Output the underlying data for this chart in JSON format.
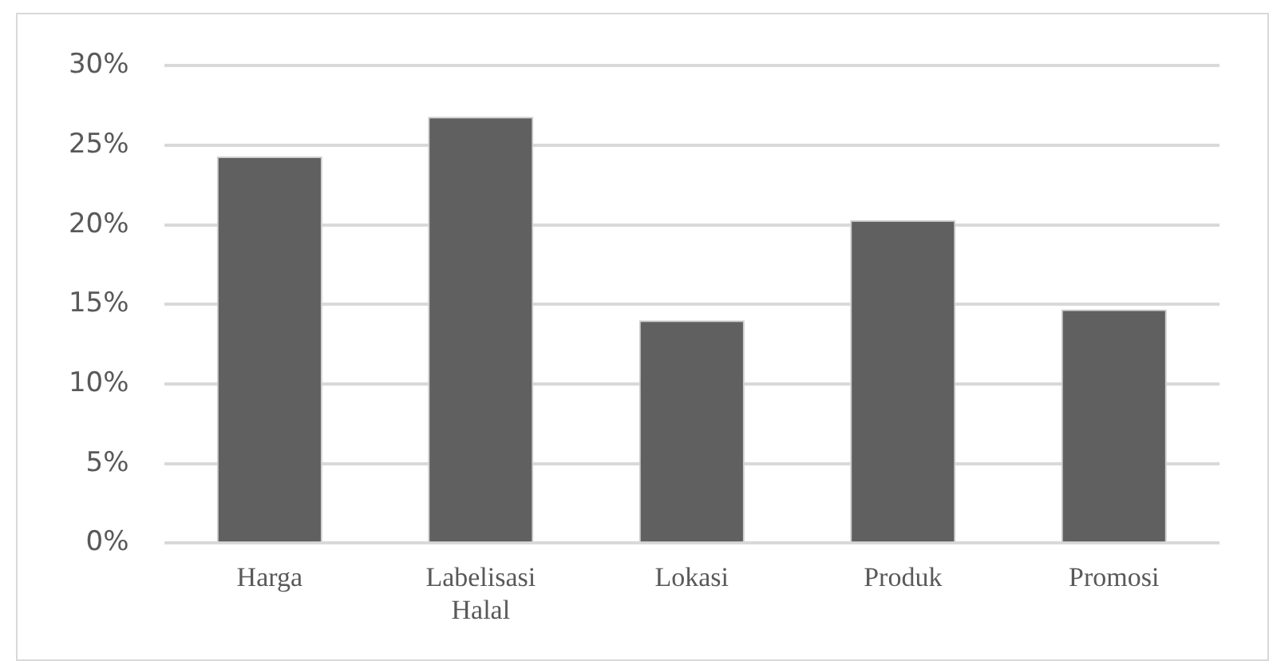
{
  "chart_data": {
    "type": "bar",
    "categories": [
      "Harga",
      "Labelisasi Halal",
      "Lokasi",
      "Produk",
      "Promosi"
    ],
    "values": [
      24.3,
      26.8,
      14.0,
      20.3,
      14.7
    ],
    "color": "#606060",
    "ylim": [
      0,
      30
    ],
    "yticks": [
      {
        "value": 0,
        "label": "0%"
      },
      {
        "value": 5,
        "label": "5%"
      },
      {
        "value": 10,
        "label": "10%"
      },
      {
        "value": 15,
        "label": "15%"
      },
      {
        "value": 20,
        "label": "20%"
      },
      {
        "value": 25,
        "label": "25%"
      },
      {
        "value": 30,
        "label": "30%"
      }
    ],
    "grid": "y"
  }
}
